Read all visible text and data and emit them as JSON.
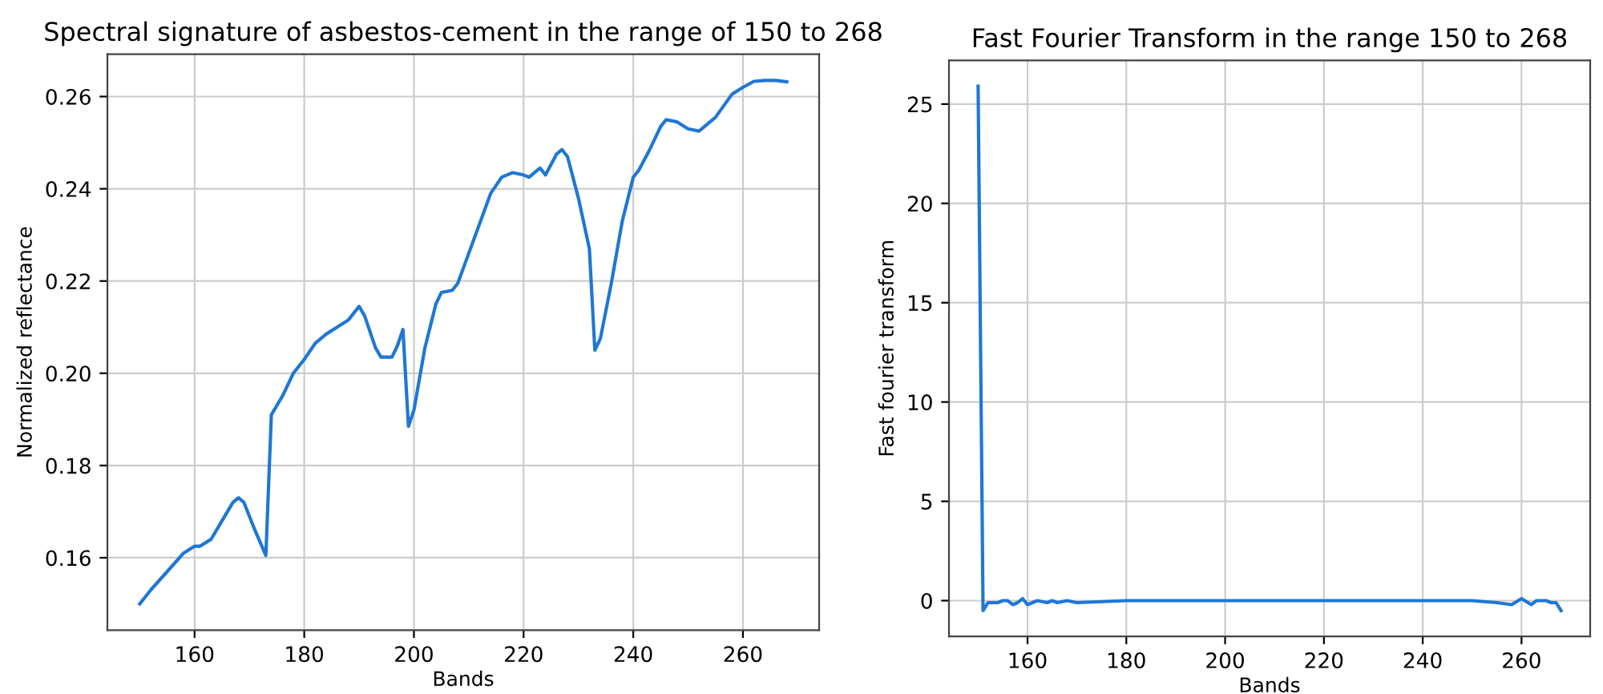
{
  "chart_data": [
    {
      "type": "line",
      "title": "Spectral signature of asbestos-cement in the range of 150 to 268",
      "xlabel": "Bands",
      "ylabel": "Normalized reflectance",
      "x": [
        150,
        152,
        155,
        158,
        160,
        161,
        163,
        165,
        167,
        168,
        169,
        171,
        173,
        174,
        176,
        178,
        180,
        182,
        184,
        186,
        188,
        190,
        191,
        193,
        194,
        196,
        197,
        198,
        199,
        200,
        202,
        204,
        205,
        207,
        208,
        210,
        212,
        214,
        216,
        218,
        220,
        221,
        223,
        224,
        226,
        227,
        228,
        230,
        232,
        233,
        234,
        236,
        238,
        240,
        241,
        243,
        245,
        246,
        248,
        250,
        252,
        255,
        258,
        260,
        262,
        264,
        266,
        268
      ],
      "series": [
        {
          "color": "#1f77d4",
          "values": [
            0.15,
            0.153,
            0.157,
            0.161,
            0.1625,
            0.1625,
            0.164,
            0.168,
            0.172,
            0.173,
            0.172,
            0.166,
            0.1605,
            0.191,
            0.195,
            0.2,
            0.203,
            0.2065,
            0.2085,
            0.21,
            0.2115,
            0.2145,
            0.2125,
            0.2055,
            0.2035,
            0.2035,
            0.206,
            0.2095,
            0.1885,
            0.192,
            0.2055,
            0.215,
            0.2175,
            0.218,
            0.2195,
            0.226,
            0.2325,
            0.239,
            0.2425,
            0.2435,
            0.243,
            0.2425,
            0.2445,
            0.243,
            0.2475,
            0.2485,
            0.247,
            0.238,
            0.227,
            0.205,
            0.2075,
            0.2195,
            0.233,
            0.2425,
            0.244,
            0.2485,
            0.2535,
            0.255,
            0.2545,
            0.253,
            0.2525,
            0.2555,
            0.2605,
            0.262,
            0.2633,
            0.2635,
            0.2635,
            0.2632
          ]
        }
      ],
      "xlim": [
        144.1,
        273.9
      ],
      "ylim": [
        0.1443,
        0.2692
      ],
      "xticks": [
        160,
        180,
        200,
        220,
        240,
        260
      ],
      "yticks": [
        0.16,
        0.18,
        {
          "value": 0.2,
          "label": "0.20"
        },
        0.22,
        0.24,
        0.26
      ],
      "grid": true
    },
    {
      "type": "line",
      "title": "Fast Fourier Transform in the range 150 to 268",
      "xlabel": "Bands",
      "ylabel": "Fast fourier transform",
      "x": [
        150,
        151,
        152,
        154,
        155,
        156,
        157,
        158,
        159,
        160,
        162,
        164,
        165,
        166,
        168,
        170,
        180,
        200,
        220,
        240,
        250,
        255,
        258,
        260,
        262,
        263,
        265,
        266,
        267,
        268
      ],
      "series": [
        {
          "color": "#1f77d4",
          "values": [
            25.9,
            -0.5,
            -0.1,
            -0.1,
            0.0,
            0.0,
            -0.2,
            -0.1,
            0.1,
            -0.2,
            0.0,
            -0.1,
            0.0,
            -0.1,
            0.0,
            -0.1,
            0.0,
            0.0,
            0.0,
            0.0,
            0.0,
            -0.1,
            -0.2,
            0.1,
            -0.2,
            0.0,
            0.0,
            -0.1,
            -0.1,
            -0.5
          ]
        }
      ],
      "xlim": [
        144.1,
        273.9
      ],
      "ylim": [
        -1.8,
        27.2
      ],
      "xticks": [
        160,
        180,
        200,
        220,
        240,
        260
      ],
      "yticks": [
        0,
        5,
        10,
        15,
        20,
        25
      ],
      "grid": true
    }
  ]
}
